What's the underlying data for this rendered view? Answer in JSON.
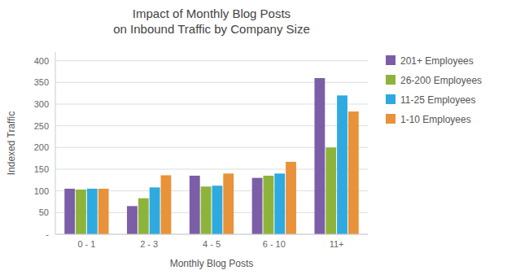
{
  "chart_data": {
    "type": "bar",
    "title": "Impact of Monthly Blog Posts\non Inbound Traffic by Company Size",
    "x_label": "Monthly Blog Posts",
    "y_label": "Indexed Traffic",
    "categories": [
      "0 - 1",
      "2 - 3",
      "4 - 5",
      "6 - 10",
      "11+"
    ],
    "series": [
      {
        "name": "201+ Employees",
        "color": "#7B5EA7",
        "values": [
          105,
          65,
          135,
          130,
          360
        ]
      },
      {
        "name": "26-200 Employees",
        "color": "#8EB33B",
        "values": [
          103,
          83,
          110,
          135,
          200
        ]
      },
      {
        "name": "11-25 Employees",
        "color": "#2EAAE1",
        "values": [
          105,
          108,
          112,
          140,
          320
        ]
      },
      {
        "name": "1-10 Employees",
        "color": "#E8923A",
        "values": [
          105,
          136,
          140,
          167,
          283
        ]
      }
    ],
    "ylim": [
      0,
      420
    ],
    "yticks": [
      {
        "value": 0,
        "label": "-"
      },
      50,
      100,
      150,
      200,
      250,
      300,
      350,
      400
    ],
    "grid": true,
    "legend": "right"
  }
}
